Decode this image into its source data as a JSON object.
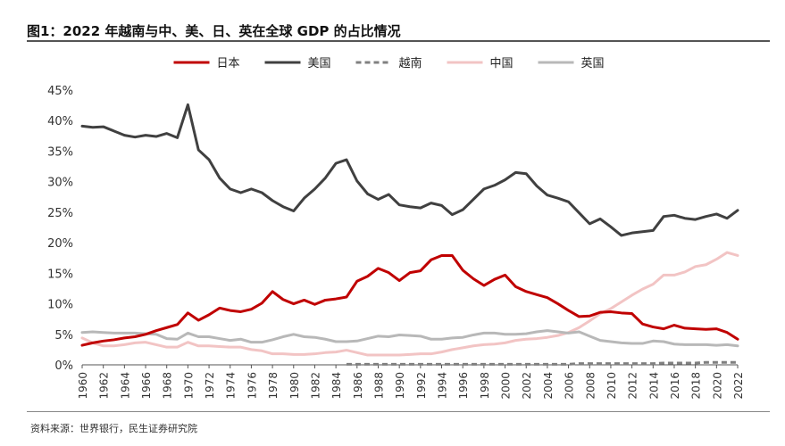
{
  "title": "图1：2022 年越南与中、美、日、英在全球 GDP 的占比情况",
  "source": "资料来源：世界银行，民生证券研究院",
  "chart_data": {
    "type": "line",
    "title": "图1：2022 年越南与中、美、日、英在全球 GDP 的占比情况",
    "xlabel": "",
    "ylabel": "",
    "ylim": [
      0,
      45
    ],
    "xlim": [
      1960,
      2022
    ],
    "ytick_labels": [
      "0%",
      "5%",
      "10%",
      "15%",
      "20%",
      "25%",
      "30%",
      "35%",
      "40%",
      "45%"
    ],
    "xtick_labels": [
      "1960",
      "1962",
      "1964",
      "1966",
      "1968",
      "1970",
      "1972",
      "1974",
      "1976",
      "1978",
      "1980",
      "1982",
      "1984",
      "1986",
      "1988",
      "1990",
      "1992",
      "1994",
      "1996",
      "1998",
      "2000",
      "2002",
      "2004",
      "2006",
      "2008",
      "2010",
      "2012",
      "2014",
      "2016",
      "2018",
      "2020",
      "2022"
    ],
    "legend_position": "top-center",
    "grid": false,
    "x": [
      1960,
      1961,
      1962,
      1963,
      1964,
      1965,
      1966,
      1967,
      1968,
      1969,
      1970,
      1971,
      1972,
      1973,
      1974,
      1975,
      1976,
      1977,
      1978,
      1979,
      1980,
      1981,
      1982,
      1983,
      1984,
      1985,
      1986,
      1987,
      1988,
      1989,
      1990,
      1991,
      1992,
      1993,
      1994,
      1995,
      1996,
      1997,
      1998,
      1999,
      2000,
      2001,
      2002,
      2003,
      2004,
      2005,
      2006,
      2007,
      2008,
      2009,
      2010,
      2011,
      2012,
      2013,
      2014,
      2015,
      2016,
      2017,
      2018,
      2019,
      2020,
      2021,
      2022
    ],
    "series": [
      {
        "name": "日本",
        "color": "#c00000",
        "dash": "",
        "values": [
          3.2,
          3.6,
          3.9,
          4.1,
          4.4,
          4.6,
          5.0,
          5.6,
          6.1,
          6.6,
          8.5,
          7.3,
          8.2,
          9.3,
          8.9,
          8.7,
          9.1,
          10.1,
          12.0,
          10.7,
          10.0,
          10.6,
          9.9,
          10.6,
          10.8,
          11.1,
          13.7,
          14.5,
          15.8,
          15.1,
          13.8,
          15.1,
          15.4,
          17.2,
          17.9,
          17.9,
          15.5,
          14.1,
          13.0,
          14.0,
          14.7,
          12.8,
          12.0,
          11.5,
          11.0,
          10.0,
          8.9,
          7.9,
          8.0,
          8.6,
          8.7,
          8.5,
          8.4,
          6.7,
          6.2,
          5.9,
          6.5,
          6.0,
          5.9,
          5.8,
          5.9,
          5.3,
          4.2
        ]
      },
      {
        "name": "美国",
        "color": "#404040",
        "dash": "",
        "values": [
          39.1,
          38.9,
          39.0,
          38.3,
          37.6,
          37.3,
          37.6,
          37.4,
          37.9,
          37.2,
          42.6,
          35.2,
          33.6,
          30.6,
          28.8,
          28.2,
          28.8,
          28.2,
          26.9,
          25.9,
          25.2,
          27.3,
          28.8,
          30.6,
          33.0,
          33.6,
          30.1,
          28.0,
          27.1,
          27.9,
          26.2,
          25.9,
          25.7,
          26.5,
          26.1,
          24.6,
          25.4,
          27.1,
          28.8,
          29.4,
          30.3,
          31.5,
          31.3,
          29.3,
          27.8,
          27.3,
          26.7,
          24.9,
          23.1,
          23.9,
          22.6,
          21.2,
          21.6,
          21.8,
          22.0,
          24.3,
          24.5,
          24.0,
          23.8,
          24.3,
          24.7,
          24.0,
          25.3
        ]
      },
      {
        "name": "越南",
        "color": "#808080",
        "dash": "6,4",
        "values": [
          null,
          null,
          null,
          null,
          null,
          null,
          null,
          null,
          null,
          null,
          null,
          null,
          null,
          null,
          null,
          null,
          null,
          null,
          null,
          null,
          null,
          null,
          null,
          null,
          null,
          0.1,
          0.1,
          0.1,
          0.1,
          0.1,
          0.1,
          0.1,
          0.1,
          0.1,
          0.1,
          0.1,
          0.1,
          0.1,
          0.1,
          0.1,
          0.1,
          0.1,
          0.1,
          0.1,
          0.1,
          0.1,
          0.1,
          0.2,
          0.2,
          0.2,
          0.2,
          0.2,
          0.2,
          0.2,
          0.2,
          0.3,
          0.3,
          0.3,
          0.3,
          0.4,
          0.4,
          0.4,
          0.4
        ]
      },
      {
        "name": "中国",
        "color": "#f2c4c4",
        "dash": "",
        "values": [
          4.4,
          3.6,
          3.1,
          3.1,
          3.3,
          3.6,
          3.7,
          3.3,
          2.9,
          2.9,
          3.7,
          3.1,
          3.1,
          3.0,
          2.9,
          2.9,
          2.5,
          2.3,
          1.8,
          1.8,
          1.7,
          1.7,
          1.8,
          2.0,
          2.1,
          2.4,
          2.0,
          1.6,
          1.6,
          1.6,
          1.6,
          1.7,
          1.8,
          1.8,
          2.1,
          2.5,
          2.8,
          3.1,
          3.3,
          3.4,
          3.6,
          4.0,
          4.2,
          4.3,
          4.5,
          4.8,
          5.3,
          6.1,
          7.2,
          8.4,
          9.2,
          10.3,
          11.4,
          12.4,
          13.2,
          14.7,
          14.7,
          15.2,
          16.1,
          16.4,
          17.3,
          18.4,
          17.9
        ]
      },
      {
        "name": "英国",
        "color": "#b8b8b8",
        "dash": "",
        "values": [
          5.3,
          5.4,
          5.3,
          5.2,
          5.2,
          5.2,
          5.1,
          5.0,
          4.3,
          4.2,
          5.2,
          4.6,
          4.6,
          4.3,
          4.0,
          4.2,
          3.7,
          3.7,
          4.1,
          4.6,
          5.0,
          4.6,
          4.5,
          4.2,
          3.8,
          3.8,
          3.9,
          4.3,
          4.7,
          4.6,
          4.9,
          4.8,
          4.7,
          4.2,
          4.2,
          4.4,
          4.5,
          4.9,
          5.2,
          5.2,
          5.0,
          5.0,
          5.1,
          5.4,
          5.6,
          5.4,
          5.2,
          5.4,
          4.7,
          4.0,
          3.8,
          3.6,
          3.5,
          3.5,
          3.9,
          3.8,
          3.4,
          3.3,
          3.3,
          3.3,
          3.2,
          3.3,
          3.1
        ]
      }
    ]
  }
}
